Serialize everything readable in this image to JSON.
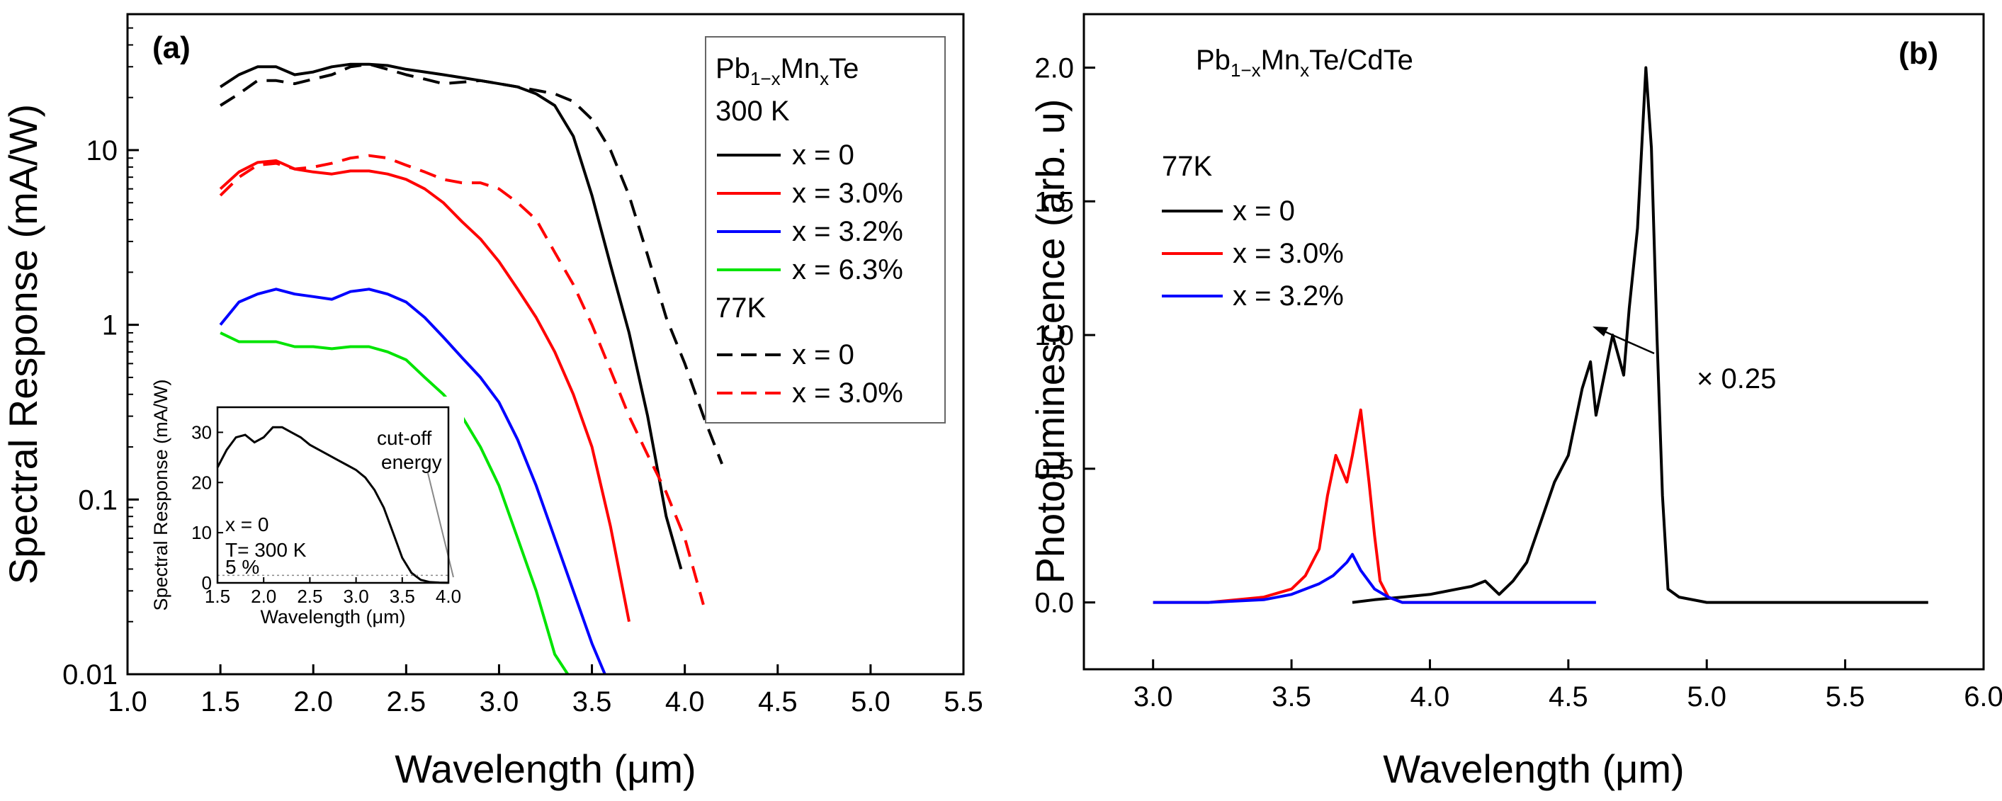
{
  "chart_data": [
    {
      "id": "a",
      "type": "line",
      "panel_label": "(a)",
      "xlabel": "Wavelength (μm)",
      "ylabel": "Spectral Response (mA/W)",
      "xlim": [
        1.0,
        5.5
      ],
      "ylim": [
        0.01,
        60
      ],
      "yscale": "log",
      "x_ticks": [
        "1.0",
        "1.5",
        "2.0",
        "2.5",
        "3.0",
        "3.5",
        "4.0",
        "4.5",
        "5.0",
        "5.5"
      ],
      "y_ticks": [
        "0.01",
        "0.1",
        "1",
        "10"
      ],
      "legend": {
        "material_main": "Pb",
        "material_sub": "1−x",
        "material_mid": "Mn",
        "material_sub2": "x",
        "material_end": "Te",
        "group1": "300 K",
        "group2": "77K",
        "entries": [
          "x = 0",
          "x = 3.0%",
          "x = 3.2%",
          "x = 6.3%",
          "x = 0",
          "x = 3.0%"
        ]
      },
      "series": [
        {
          "name": "x = 0 (300 K)",
          "color": "#000000",
          "dash": "solid",
          "x": [
            1.5,
            1.6,
            1.7,
            1.8,
            1.9,
            2.0,
            2.1,
            2.2,
            2.3,
            2.4,
            2.5,
            2.6,
            2.7,
            2.8,
            2.9,
            3.0,
            3.1,
            3.2,
            3.3,
            3.4,
            3.5,
            3.6,
            3.7,
            3.8,
            3.9,
            3.98
          ],
          "y": [
            23,
            27,
            30,
            30,
            27,
            28,
            30,
            31,
            31,
            30.5,
            29,
            28,
            27,
            26,
            25,
            24,
            23,
            21,
            18,
            12,
            5.5,
            2.2,
            0.9,
            0.3,
            0.08,
            0.04
          ]
        },
        {
          "name": "x = 3.0% (300 K)",
          "color": "#ff0000",
          "dash": "solid",
          "x": [
            1.5,
            1.6,
            1.7,
            1.8,
            1.9,
            2.0,
            2.1,
            2.2,
            2.3,
            2.4,
            2.5,
            2.6,
            2.7,
            2.8,
            2.9,
            3.0,
            3.1,
            3.2,
            3.3,
            3.4,
            3.5,
            3.6,
            3.7
          ],
          "y": [
            6,
            7.5,
            8.5,
            8.7,
            7.8,
            7.5,
            7.3,
            7.6,
            7.6,
            7.3,
            6.8,
            6,
            5,
            3.9,
            3.1,
            2.3,
            1.6,
            1.1,
            0.7,
            0.4,
            0.2,
            0.07,
            0.02
          ]
        },
        {
          "name": "x = 3.2% (300 K)",
          "color": "#0000ff",
          "dash": "solid",
          "x": [
            1.5,
            1.6,
            1.7,
            1.8,
            1.9,
            2.0,
            2.1,
            2.2,
            2.3,
            2.4,
            2.5,
            2.6,
            2.7,
            2.8,
            2.9,
            3.0,
            3.1,
            3.2,
            3.3,
            3.4,
            3.5,
            3.57
          ],
          "y": [
            1.0,
            1.35,
            1.5,
            1.6,
            1.5,
            1.45,
            1.4,
            1.55,
            1.6,
            1.5,
            1.35,
            1.1,
            0.85,
            0.65,
            0.5,
            0.36,
            0.22,
            0.12,
            0.06,
            0.03,
            0.015,
            0.01
          ]
        },
        {
          "name": "x = 6.3% (300 K)",
          "color": "#00e400",
          "dash": "solid",
          "x": [
            1.5,
            1.6,
            1.7,
            1.8,
            1.9,
            2.0,
            2.1,
            2.2,
            2.3,
            2.4,
            2.5,
            2.6,
            2.7,
            2.8,
            2.9,
            3.0,
            3.1,
            3.2,
            3.3,
            3.37
          ],
          "y": [
            0.9,
            0.8,
            0.8,
            0.8,
            0.75,
            0.75,
            0.73,
            0.75,
            0.75,
            0.7,
            0.63,
            0.5,
            0.4,
            0.3,
            0.2,
            0.12,
            0.06,
            0.03,
            0.013,
            0.01
          ]
        },
        {
          "name": "x = 0 (77K)",
          "color": "#000000",
          "dash": "dashed",
          "x": [
            1.5,
            1.6,
            1.7,
            1.8,
            1.9,
            2.0,
            2.1,
            2.2,
            2.3,
            2.4,
            2.5,
            2.6,
            2.7,
            2.8,
            2.9,
            3.0,
            3.1,
            3.2,
            3.3,
            3.4,
            3.5,
            3.6,
            3.7,
            3.8,
            3.9,
            4.0,
            4.1,
            4.2
          ],
          "y": [
            18,
            21,
            25,
            25,
            24,
            25.5,
            27,
            30,
            31,
            29,
            27,
            25.5,
            24,
            24.5,
            25,
            24,
            23,
            22,
            21,
            19,
            15,
            10,
            5.5,
            2.5,
            1.1,
            0.6,
            0.3,
            0.16
          ]
        },
        {
          "name": "x = 3.0% (77K)",
          "color": "#ff0000",
          "dash": "dashed",
          "x": [
            1.5,
            1.6,
            1.7,
            1.8,
            1.9,
            2.0,
            2.1,
            2.2,
            2.3,
            2.4,
            2.5,
            2.6,
            2.7,
            2.8,
            2.9,
            3.0,
            3.1,
            3.2,
            3.3,
            3.4,
            3.5,
            3.6,
            3.7,
            3.8,
            3.9,
            4.0,
            4.1
          ],
          "y": [
            5.5,
            7,
            8.2,
            8.4,
            7.8,
            8,
            8.4,
            9,
            9.3,
            9,
            8.2,
            7.5,
            6.8,
            6.5,
            6.5,
            6,
            5,
            4,
            2.6,
            1.7,
            1.0,
            0.55,
            0.3,
            0.18,
            0.11,
            0.06,
            0.025
          ]
        }
      ],
      "inset": {
        "xlabel": "Wavelength (μm)",
        "ylabel": "Spectral Response (mA/W)",
        "xlim": [
          1.5,
          4.0
        ],
        "ylim": [
          0,
          35
        ],
        "x_ticks": [
          "1.5",
          "2.0",
          "2.5",
          "3.0",
          "3.5",
          "4.0"
        ],
        "y_ticks": [
          "0",
          "10",
          "20",
          "30"
        ],
        "text_x": "x = 0",
        "text_t": "T= 300 K",
        "text_pct": "5 %",
        "cutoff_line1": "cut-off",
        "cutoff_line2": "energy",
        "threshold": 1.5,
        "series": {
          "x": [
            1.5,
            1.6,
            1.7,
            1.8,
            1.9,
            2.0,
            2.1,
            2.2,
            2.3,
            2.4,
            2.5,
            2.6,
            2.7,
            2.8,
            2.9,
            3.0,
            3.1,
            3.2,
            3.3,
            3.4,
            3.5,
            3.6,
            3.7,
            3.8,
            3.9,
            4.0
          ],
          "y": [
            23,
            26.5,
            29,
            29.5,
            28,
            29,
            31,
            31,
            30,
            29,
            27.5,
            26.5,
            25.5,
            24.5,
            23.5,
            22.5,
            21,
            18.5,
            15,
            10,
            5,
            2,
            0.6,
            0.15,
            0.05,
            0.02
          ]
        }
      }
    },
    {
      "id": "b",
      "type": "line",
      "panel_label": "(b)",
      "xlabel": "Wavelength (μm)",
      "ylabel": "Photoluminescence (arb. u)",
      "xlim": [
        2.75,
        6.0
      ],
      "ylim": [
        -0.25,
        2.2
      ],
      "x_ticks": [
        "3.0",
        "3.5",
        "4.0",
        "4.5",
        "5.0",
        "5.5",
        "6.0"
      ],
      "y_ticks": [
        "0.0",
        "0.5",
        "1.0",
        "1.5",
        "2.0"
      ],
      "title": {
        "main": "Pb",
        "sub": "1−x",
        "mid": "Mn",
        "sub2": "x",
        "end": "Te/CdTe"
      },
      "legend": {
        "group": "77K",
        "entries": [
          "x = 0",
          "x = 3.0%",
          "x = 3.2%"
        ]
      },
      "annotation": "× 0.25",
      "series": [
        {
          "name": "x = 0",
          "color": "#000000",
          "x": [
            3.72,
            3.8,
            3.9,
            4.0,
            4.1,
            4.15,
            4.2,
            4.25,
            4.3,
            4.35,
            4.4,
            4.45,
            4.5,
            4.55,
            4.58,
            4.6,
            4.63,
            4.66,
            4.7,
            4.72,
            4.75,
            4.78,
            4.8,
            4.82,
            4.84,
            4.86,
            4.9,
            5.0,
            5.2,
            5.4,
            5.6,
            5.8
          ],
          "y": [
            0.0,
            0.01,
            0.02,
            0.03,
            0.05,
            0.06,
            0.08,
            0.03,
            0.08,
            0.15,
            0.3,
            0.45,
            0.55,
            0.8,
            0.9,
            0.7,
            0.85,
            1.0,
            0.85,
            1.1,
            1.4,
            2.0,
            1.7,
            1.0,
            0.4,
            0.05,
            0.02,
            0.0,
            0.0,
            0.0,
            0.0,
            0.0
          ]
        },
        {
          "name": "x = 3.0%",
          "color": "#ff0000",
          "x": [
            3.0,
            3.2,
            3.4,
            3.5,
            3.55,
            3.6,
            3.63,
            3.66,
            3.68,
            3.7,
            3.72,
            3.75,
            3.78,
            3.8,
            3.82,
            3.85,
            3.9,
            4.0,
            4.2,
            4.47
          ],
          "y": [
            0.0,
            0.0,
            0.02,
            0.05,
            0.1,
            0.2,
            0.4,
            0.55,
            0.5,
            0.45,
            0.55,
            0.72,
            0.45,
            0.25,
            0.08,
            0.02,
            0.0,
            0.0,
            0.0,
            0.0
          ]
        },
        {
          "name": "x = 3.2%",
          "color": "#0000ff",
          "x": [
            3.0,
            3.2,
            3.4,
            3.5,
            3.6,
            3.65,
            3.7,
            3.72,
            3.75,
            3.8,
            3.85,
            3.9,
            4.0,
            4.2,
            4.4,
            4.6
          ],
          "y": [
            0.0,
            0.0,
            0.01,
            0.03,
            0.07,
            0.1,
            0.15,
            0.18,
            0.12,
            0.05,
            0.02,
            0.0,
            0.0,
            0.0,
            0.0,
            0.0
          ]
        }
      ]
    }
  ]
}
